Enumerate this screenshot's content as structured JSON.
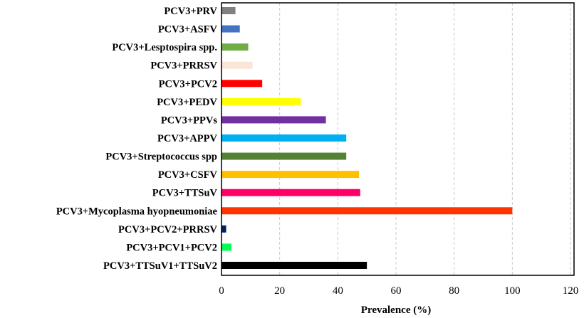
{
  "chart_data": {
    "type": "bar",
    "orientation": "horizontal",
    "title": "",
    "xlabel": "Prevalence (%)",
    "ylabel": "",
    "xlim": [
      0,
      120
    ],
    "xticks": [
      0,
      20,
      40,
      60,
      80,
      100,
      120
    ],
    "grid": "vertical dashed",
    "categories": [
      "PCV3+PRV",
      "PCV3+ASFV",
      "PCV3+Lesptospira spp.",
      "PCV3+PRRSV",
      "PCV3+PCV2",
      "PCV3+PEDV",
      "PCV3+PPVs",
      "PCV3+APPV",
      "PCV3+Streptococcus spp",
      "PCV3+CSFV",
      "PCV3+TTSuV",
      "PCV3+Mycoplasma hyopneumoniae",
      "PCV3+PCV2+PRRSV",
      "PCV3+PCV1+PCV2",
      "PCV3+TTSuV1+TTSuV2"
    ],
    "values": [
      4.8,
      6.3,
      9.2,
      10.7,
      14.0,
      27.3,
      35.9,
      42.9,
      42.9,
      47.3,
      47.7,
      100,
      1.6,
      3.4,
      50
    ],
    "colors": [
      "#808080",
      "#4472c4",
      "#70ad47",
      "#fbe5d6",
      "#ff0000",
      "#ffff00",
      "#7030a0",
      "#00b0f0",
      "#548235",
      "#ffc000",
      "#ff0066",
      "#ff3300",
      "#002060",
      "#00ff50",
      "#000000"
    ]
  }
}
